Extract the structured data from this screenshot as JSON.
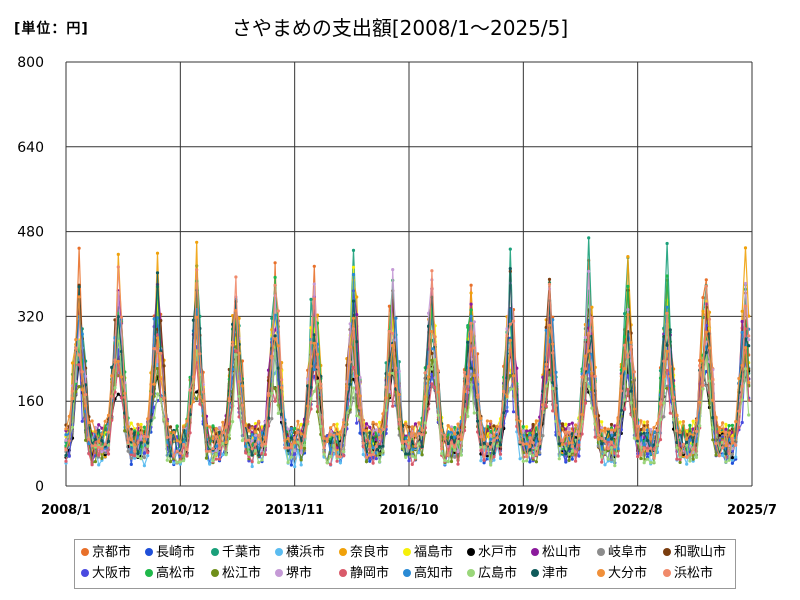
{
  "unit_label": "[単位：円]",
  "chart_data": {
    "type": "line",
    "title": "さやまめの支出額[2008/1～2025/5]",
    "xlabel": "",
    "ylabel": "",
    "ylim": [
      0,
      800
    ],
    "yticks": [
      0,
      160,
      320,
      480,
      640,
      800
    ],
    "xticks": [
      "2008/1",
      "2010/12",
      "2013/11",
      "2016/10",
      "2019/9",
      "2022/8",
      "2025/7"
    ],
    "grid": true,
    "legend_position": "bottom",
    "series": [
      {
        "name": "京都市",
        "color": "#e8702a"
      },
      {
        "name": "長崎市",
        "color": "#1f4fd8"
      },
      {
        "name": "千葉市",
        "color": "#1aa07a"
      },
      {
        "name": "横浜市",
        "color": "#5bbcf0"
      },
      {
        "name": "奈良市",
        "color": "#f0a10a"
      },
      {
        "name": "福島市",
        "color": "#f5f00a"
      },
      {
        "name": "水戸市",
        "color": "#000000"
      },
      {
        "name": "松山市",
        "color": "#8b1a9c"
      },
      {
        "name": "岐阜市",
        "color": "#8c8c8c"
      },
      {
        "name": "和歌山市",
        "color": "#7a3d0f"
      },
      {
        "name": "大阪市",
        "color": "#4a4ae0"
      },
      {
        "name": "高松市",
        "color": "#1fb84a"
      },
      {
        "name": "松江市",
        "color": "#6f8f1a"
      },
      {
        "name": "堺市",
        "color": "#c59ad6"
      },
      {
        "name": "静岡市",
        "color": "#d95a6a"
      },
      {
        "name": "高知市",
        "color": "#2a8ad4"
      },
      {
        "name": "広島市",
        "color": "#9ad67a"
      },
      {
        "name": "津市",
        "color": "#0f5a5a"
      },
      {
        "name": "大分市",
        "color": "#f0903a"
      },
      {
        "name": "浜松市",
        "color": "#f08a6a"
      }
    ]
  }
}
